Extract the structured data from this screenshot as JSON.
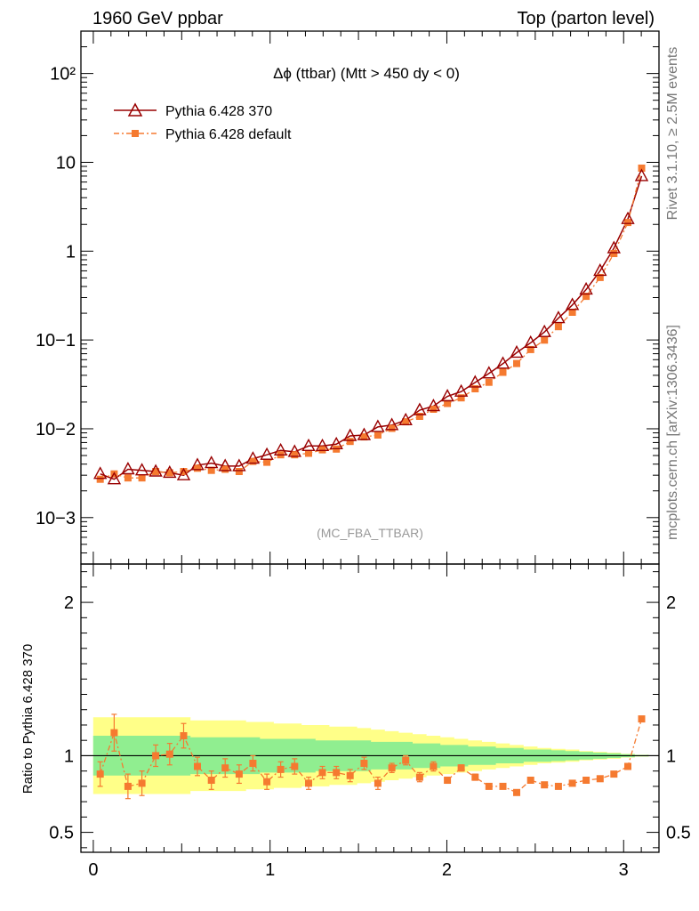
{
  "header": {
    "left": "1960 GeV ppbar",
    "right": "Top (parton level)"
  },
  "side": {
    "rivet": "Rivet 3.1.10, ≥ 2.5M events",
    "mcplots": "mcplots.cern.ch [arXiv:1306.3436]"
  },
  "chart_data": {
    "type": "line",
    "title": "Δϕ (ttbar) (Mtt > 450 dy < 0)",
    "analysis_tag": "(MC_FBA_TTBAR)",
    "xlabel": "",
    "ylabel": "",
    "xlim": [
      -0.07,
      3.2
    ],
    "ylim": [
      0.0003,
      300
    ],
    "yscale": "log",
    "xticks": [
      "0",
      "1",
      "2",
      "3"
    ],
    "yticks": [
      "10−3",
      "10−2",
      "10−1",
      "1",
      "10",
      "10²"
    ],
    "legend": {
      "placement": "top-left"
    },
    "x": [
      0.039,
      0.118,
      0.196,
      0.275,
      0.353,
      0.432,
      0.511,
      0.589,
      0.668,
      0.746,
      0.825,
      0.903,
      0.982,
      1.06,
      1.139,
      1.218,
      1.296,
      1.375,
      1.453,
      1.532,
      1.61,
      1.689,
      1.767,
      1.846,
      1.924,
      2.003,
      2.081,
      2.16,
      2.238,
      2.317,
      2.395,
      2.474,
      2.552,
      2.631,
      2.71,
      2.788,
      2.867,
      2.945,
      3.024,
      3.102
    ],
    "series": [
      {
        "name": "Pythia 6.428 370",
        "color": "#990000",
        "marker": "open-triangle",
        "values": [
          0.0031,
          0.0027,
          0.0035,
          0.0034,
          0.0033,
          0.0032,
          0.003,
          0.0039,
          0.0041,
          0.0038,
          0.0038,
          0.0046,
          0.0051,
          0.0057,
          0.0055,
          0.0064,
          0.0064,
          0.0067,
          0.0083,
          0.0085,
          0.0105,
          0.011,
          0.0125,
          0.0162,
          0.018,
          0.0232,
          0.0262,
          0.0332,
          0.042,
          0.054,
          0.072,
          0.093,
          0.123,
          0.176,
          0.248,
          0.37,
          0.6,
          1.08,
          2.3,
          7.0
        ]
      },
      {
        "name": "Pythia 6.428 default",
        "color": "#f57a30",
        "marker": "filled-square",
        "values": [
          0.0027,
          0.0031,
          0.0028,
          0.0028,
          0.0033,
          0.0032,
          0.0033,
          0.0036,
          0.0034,
          0.0035,
          0.0033,
          0.0043,
          0.0042,
          0.0051,
          0.0051,
          0.0053,
          0.0058,
          0.0059,
          0.0072,
          0.0081,
          0.0085,
          0.0101,
          0.012,
          0.0138,
          0.0166,
          0.0193,
          0.0223,
          0.0282,
          0.0334,
          0.0432,
          0.0543,
          0.078,
          0.0995,
          0.141,
          0.205,
          0.31,
          0.505,
          0.94,
          2.1,
          8.6
        ]
      }
    ],
    "ratio": {
      "ylabel": "Ratio to Pythia 6.428 370",
      "ylim": [
        0.37,
        2.25
      ],
      "yticks": [
        "0.5",
        "1",
        "2"
      ],
      "values": [
        0.88,
        1.15,
        0.8,
        0.82,
        1.0,
        1.01,
        1.13,
        0.93,
        0.84,
        0.92,
        0.88,
        0.95,
        0.83,
        0.91,
        0.93,
        0.82,
        0.89,
        0.89,
        0.87,
        0.95,
        0.82,
        0.92,
        0.97,
        0.86,
        0.93,
        0.84,
        0.92,
        0.86,
        0.8,
        0.8,
        0.76,
        0.84,
        0.81,
        0.8,
        0.82,
        0.84,
        0.85,
        0.88,
        0.93,
        1.24
      ],
      "errors": [
        0.08,
        0.12,
        0.08,
        0.08,
        0.07,
        0.07,
        0.08,
        0.06,
        0.06,
        0.06,
        0.06,
        0.05,
        0.05,
        0.05,
        0.05,
        0.04,
        0.04,
        0.04,
        0.04,
        0.04,
        0.04,
        0.03,
        0.03,
        0.03,
        0.03,
        0.02,
        0.02,
        0.02,
        0.015,
        0.015,
        0.01,
        0.01,
        0.01,
        0.008,
        0.008,
        0.006,
        0.005,
        0.005,
        0.004,
        0.004
      ],
      "band_green": [
        0.13,
        0.13,
        0.13,
        0.13,
        0.13,
        0.13,
        0.13,
        0.12,
        0.12,
        0.12,
        0.12,
        0.12,
        0.11,
        0.11,
        0.11,
        0.11,
        0.1,
        0.1,
        0.1,
        0.1,
        0.09,
        0.09,
        0.09,
        0.08,
        0.08,
        0.07,
        0.07,
        0.06,
        0.06,
        0.05,
        0.05,
        0.04,
        0.04,
        0.035,
        0.03,
        0.025,
        0.02,
        0.015,
        0.01,
        0.005
      ],
      "band_yellow": [
        0.25,
        0.25,
        0.25,
        0.25,
        0.25,
        0.25,
        0.25,
        0.23,
        0.23,
        0.23,
        0.23,
        0.22,
        0.22,
        0.21,
        0.21,
        0.2,
        0.2,
        0.19,
        0.19,
        0.18,
        0.17,
        0.16,
        0.15,
        0.14,
        0.13,
        0.12,
        0.11,
        0.1,
        0.09,
        0.08,
        0.07,
        0.06,
        0.05,
        0.045,
        0.04,
        0.03,
        0.025,
        0.02,
        0.012,
        0.006
      ]
    }
  }
}
